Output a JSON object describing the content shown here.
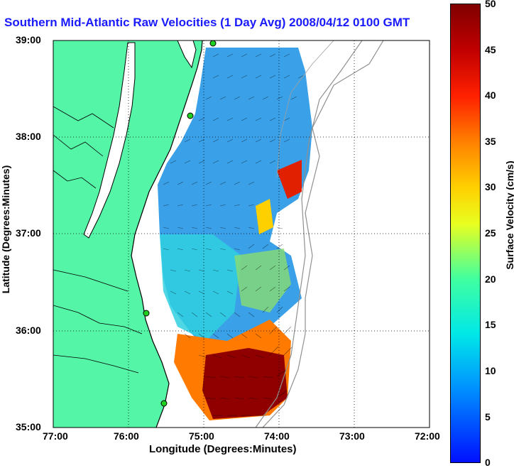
{
  "title": "Southern Mid-Atlantic Raw Velocities (1 Day Avg) 2008/04/12 0100 GMT",
  "axes": {
    "xlabel": "Longitude (Degrees:Minutes)",
    "ylabel": "Latitude (Degrees:Minutes)",
    "xticks": [
      "77:00",
      "76:00",
      "75:00",
      "74:00",
      "73:00",
      "72:00"
    ],
    "yticks": [
      "39:00",
      "38:00",
      "37:00",
      "36:00",
      "35:00"
    ]
  },
  "colorbar": {
    "label": "Surface Velocity (cm/s)",
    "ticks": [
      "50",
      "45",
      "40",
      "35",
      "30",
      "25",
      "20",
      "15",
      "10",
      "5",
      "0"
    ],
    "min": 0,
    "max": 50
  },
  "colors": {
    "land": "#55f5a8",
    "title": "#1a1aff",
    "coast": "#000000"
  }
}
